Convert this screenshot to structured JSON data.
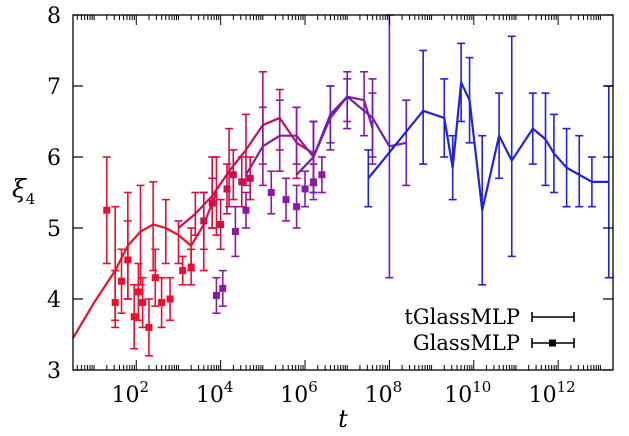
{
  "chart_data": {
    "type": "line",
    "xlabel": "t",
    "ylabel": "ξ",
    "ylabel_sub": "4",
    "xscale": "log10",
    "xlim_log10": [
      0.5,
      13.3
    ],
    "ylim": [
      3,
      8
    ],
    "xticks": [
      {
        "base": "10",
        "exp": "2",
        "log10": 2
      },
      {
        "base": "10",
        "exp": "4",
        "log10": 4
      },
      {
        "base": "10",
        "exp": "6",
        "log10": 6
      },
      {
        "base": "10",
        "exp": "8",
        "log10": 8
      },
      {
        "base": "10",
        "exp": "10",
        "log10": 10
      },
      {
        "base": "10",
        "exp": "12",
        "log10": 12
      }
    ],
    "yticks": [
      "3",
      "4",
      "5",
      "6",
      "7",
      "8"
    ],
    "legend_position": "bottom-right",
    "legend": [
      {
        "label": "tGlassMLP",
        "style": "line-errorbar"
      },
      {
        "label": "GlassMLP",
        "style": "square-errorbar"
      }
    ],
    "colors": {
      "red": "#e8102e",
      "crimson": "#c8104e",
      "purple": "#8a1aa0",
      "violet": "#6a20b8",
      "blue": "#2222d8"
    },
    "tglassmlp_series": [
      {
        "color": "red",
        "points": [
          {
            "x": 0.5,
            "y": 3.45
          },
          {
            "x": 1.0,
            "y": 3.95
          },
          {
            "x": 1.5,
            "y": 4.4,
            "lo": 3.7,
            "hi": 5.3
          },
          {
            "x": 1.8,
            "y": 4.75,
            "lo": 4.0,
            "hi": 5.5
          },
          {
            "x": 2.1,
            "y": 4.95,
            "lo": 4.2,
            "hi": 5.6
          },
          {
            "x": 2.4,
            "y": 5.05,
            "lo": 4.4,
            "hi": 5.65
          },
          {
            "x": 2.7,
            "y": 5.0,
            "lo": 4.5,
            "hi": 5.4
          },
          {
            "x": 3.0,
            "y": 4.9,
            "lo": 4.5,
            "hi": 5.1
          },
          {
            "x": 3.3,
            "y": 4.75,
            "lo": 4.4,
            "hi": 5.0
          },
          {
            "x": 3.6,
            "y": 5.05,
            "lo": 4.4,
            "hi": 5.5
          },
          {
            "x": 3.9,
            "y": 5.5,
            "lo": 4.9,
            "hi": 6.0
          }
        ]
      },
      {
        "color": "crimson",
        "points": [
          {
            "x": 3.0,
            "y": 5.0
          },
          {
            "x": 3.4,
            "y": 5.2,
            "lo": 4.9,
            "hi": 5.5
          },
          {
            "x": 3.8,
            "y": 5.45,
            "lo": 5.0,
            "hi": 6.0
          },
          {
            "x": 4.2,
            "y": 5.8,
            "lo": 5.3,
            "hi": 6.4
          },
          {
            "x": 4.6,
            "y": 6.1,
            "lo": 5.6,
            "hi": 6.6
          },
          {
            "x": 5.0,
            "y": 6.45,
            "lo": 5.9,
            "hi": 7.2
          },
          {
            "x": 5.4,
            "y": 6.55,
            "lo": 6.1,
            "hi": 6.95
          },
          {
            "x": 5.8,
            "y": 6.2,
            "lo": 5.7,
            "hi": 6.7
          },
          {
            "x": 6.2,
            "y": 6.05,
            "lo": 5.6,
            "hi": 6.5
          }
        ]
      },
      {
        "color": "purple",
        "points": [
          {
            "x": 4.6,
            "y": 5.75
          },
          {
            "x": 5.0,
            "y": 6.15,
            "lo": 5.6,
            "hi": 6.7
          },
          {
            "x": 5.4,
            "y": 6.3,
            "lo": 5.8,
            "hi": 6.8
          },
          {
            "x": 5.8,
            "y": 6.3,
            "lo": 5.9,
            "hi": 6.7
          },
          {
            "x": 6.2,
            "y": 6.0,
            "lo": 5.5,
            "hi": 6.5
          },
          {
            "x": 6.6,
            "y": 6.6,
            "lo": 6.2,
            "hi": 7.0
          },
          {
            "x": 7.0,
            "y": 6.85,
            "lo": 6.5,
            "hi": 7.1
          },
          {
            "x": 7.4,
            "y": 6.8,
            "lo": 6.3,
            "hi": 7.2
          },
          {
            "x": 7.6,
            "y": 6.4,
            "lo": 5.9,
            "hi": 6.9
          }
        ]
      },
      {
        "color": "violet",
        "points": [
          {
            "x": 5.8,
            "y": 5.75
          },
          {
            "x": 6.2,
            "y": 6.0,
            "lo": 5.5,
            "hi": 6.5
          },
          {
            "x": 6.6,
            "y": 6.55,
            "lo": 6.1,
            "hi": 7.0
          },
          {
            "x": 7.0,
            "y": 6.85,
            "lo": 6.4,
            "hi": 7.2
          },
          {
            "x": 7.6,
            "y": 6.55,
            "lo": 6.0,
            "hi": 7.1
          },
          {
            "x": 8.0,
            "y": 6.15,
            "lo": 4.3,
            "hi": 8.1
          },
          {
            "x": 8.4,
            "y": 6.2,
            "lo": 5.6,
            "hi": 6.8
          }
        ]
      },
      {
        "color": "blue",
        "points": [
          {
            "x": 7.5,
            "y": 5.7,
            "lo": 5.3,
            "hi": 6.1
          },
          {
            "x": 8.8,
            "y": 6.65,
            "lo": 5.9,
            "hi": 7.5
          },
          {
            "x": 9.3,
            "y": 6.55,
            "lo": 6.0,
            "hi": 7.1
          },
          {
            "x": 9.5,
            "y": 5.85,
            "lo": 5.4,
            "hi": 6.3
          },
          {
            "x": 9.7,
            "y": 7.05,
            "lo": 6.5,
            "hi": 7.6
          },
          {
            "x": 9.9,
            "y": 6.8,
            "lo": 6.2,
            "hi": 7.4
          },
          {
            "x": 10.2,
            "y": 5.25,
            "lo": 4.2,
            "hi": 6.3
          },
          {
            "x": 10.6,
            "y": 6.3,
            "lo": 5.7,
            "hi": 6.9
          },
          {
            "x": 10.9,
            "y": 5.95,
            "lo": 4.6,
            "hi": 7.7
          },
          {
            "x": 11.4,
            "y": 6.4,
            "lo": 5.9,
            "hi": 6.9
          },
          {
            "x": 11.7,
            "y": 6.25,
            "lo": 5.6,
            "hi": 6.9
          },
          {
            "x": 11.9,
            "y": 6.05,
            "lo": 5.5,
            "hi": 6.6
          },
          {
            "x": 12.2,
            "y": 5.85,
            "lo": 5.3,
            "hi": 6.4
          },
          {
            "x": 12.5,
            "y": 5.75,
            "lo": 5.3,
            "hi": 6.3
          },
          {
            "x": 12.8,
            "y": 5.65,
            "lo": 5.3,
            "hi": 6.0
          },
          {
            "x": 13.2,
            "y": 5.65,
            "lo": 4.3,
            "hi": 7.0
          }
        ]
      }
    ],
    "glassmlp_points": [
      {
        "x": 1.3,
        "y": 5.25,
        "lo": 4.5,
        "hi": 6.0,
        "color": "red"
      },
      {
        "x": 1.5,
        "y": 3.95,
        "lo": 3.6,
        "hi": 4.4,
        "color": "red"
      },
      {
        "x": 1.65,
        "y": 4.25,
        "lo": 3.8,
        "hi": 4.7,
        "color": "red"
      },
      {
        "x": 1.8,
        "y": 4.55,
        "lo": 4.0,
        "hi": 5.1,
        "color": "red"
      },
      {
        "x": 1.95,
        "y": 3.75,
        "lo": 3.3,
        "hi": 4.2,
        "color": "red"
      },
      {
        "x": 2.05,
        "y": 4.1,
        "lo": 3.7,
        "hi": 4.5,
        "color": "red"
      },
      {
        "x": 2.15,
        "y": 3.95,
        "lo": 3.6,
        "hi": 4.3,
        "color": "red"
      },
      {
        "x": 2.3,
        "y": 3.6,
        "lo": 3.2,
        "hi": 4.0,
        "color": "red"
      },
      {
        "x": 2.45,
        "y": 4.3,
        "lo": 3.9,
        "hi": 4.7,
        "color": "red"
      },
      {
        "x": 2.6,
        "y": 3.95,
        "lo": 3.6,
        "hi": 4.3,
        "color": "red"
      },
      {
        "x": 2.8,
        "y": 4.0,
        "lo": 3.7,
        "hi": 4.3,
        "color": "red"
      },
      {
        "x": 3.1,
        "y": 4.4,
        "lo": 4.2,
        "hi": 4.6,
        "color": "red"
      },
      {
        "x": 3.3,
        "y": 4.45,
        "lo": 4.2,
        "hi": 4.7,
        "color": "red"
      },
      {
        "x": 3.6,
        "y": 5.1,
        "lo": 4.7,
        "hi": 5.5,
        "color": "crimson"
      },
      {
        "x": 3.8,
        "y": 5.35,
        "lo": 5.0,
        "hi": 5.7,
        "color": "crimson"
      },
      {
        "x": 4.0,
        "y": 5.05,
        "lo": 4.7,
        "hi": 5.4,
        "color": "crimson"
      },
      {
        "x": 4.15,
        "y": 5.55,
        "lo": 5.2,
        "hi": 5.9,
        "color": "crimson"
      },
      {
        "x": 4.3,
        "y": 5.75,
        "lo": 5.4,
        "hi": 6.1,
        "color": "crimson"
      },
      {
        "x": 4.5,
        "y": 5.65,
        "lo": 5.3,
        "hi": 6.0,
        "color": "crimson"
      },
      {
        "x": 4.7,
        "y": 5.7,
        "lo": 5.4,
        "hi": 6.0,
        "color": "crimson"
      },
      {
        "x": 3.9,
        "y": 4.05,
        "lo": 3.8,
        "hi": 4.3,
        "color": "purple"
      },
      {
        "x": 4.05,
        "y": 4.15,
        "lo": 3.9,
        "hi": 4.4,
        "color": "purple"
      },
      {
        "x": 4.35,
        "y": 4.95,
        "lo": 4.6,
        "hi": 5.3,
        "color": "purple"
      },
      {
        "x": 4.6,
        "y": 5.25,
        "lo": 5.0,
        "hi": 5.5,
        "color": "purple"
      },
      {
        "x": 5.2,
        "y": 5.5,
        "lo": 5.2,
        "hi": 5.8,
        "color": "purple"
      },
      {
        "x": 5.55,
        "y": 5.4,
        "lo": 5.1,
        "hi": 5.7,
        "color": "purple"
      },
      {
        "x": 5.8,
        "y": 5.3,
        "lo": 5.0,
        "hi": 5.6,
        "color": "purple"
      },
      {
        "x": 6.0,
        "y": 5.55,
        "lo": 5.3,
        "hi": 5.8,
        "color": "purple"
      },
      {
        "x": 6.2,
        "y": 5.65,
        "lo": 5.4,
        "hi": 5.9,
        "color": "purple"
      },
      {
        "x": 6.4,
        "y": 5.75,
        "lo": 5.5,
        "hi": 6.0,
        "color": "purple"
      }
    ]
  }
}
